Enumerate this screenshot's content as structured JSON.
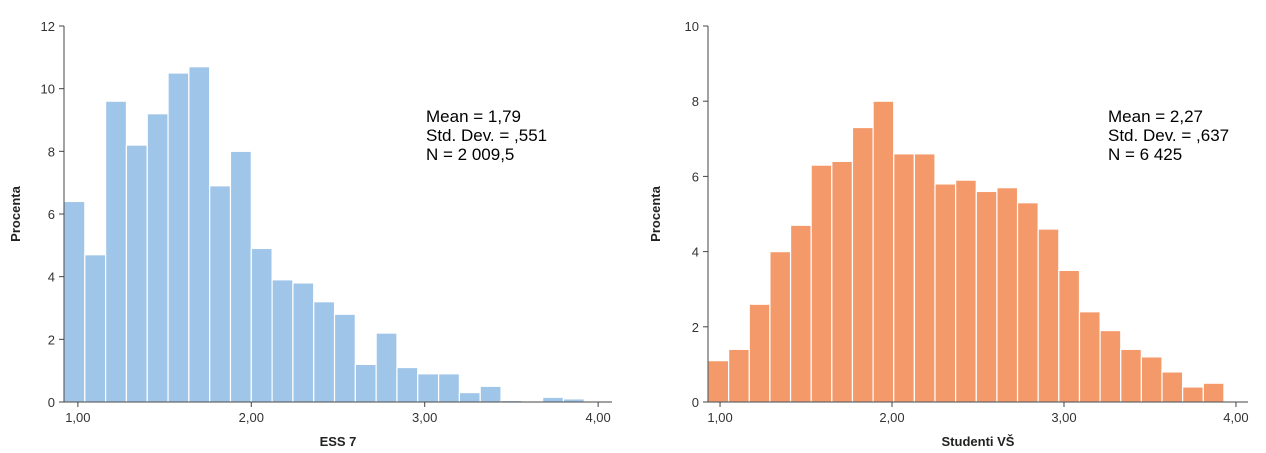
{
  "chart_data": [
    {
      "type": "bar",
      "subtype": "histogram",
      "xlabel": "ESS 7",
      "ylabel": "Procenta",
      "color": "#9FC5E8",
      "xlim": [
        0.92,
        4.08
      ],
      "ylim": [
        0,
        12
      ],
      "x_ticks": [
        1.0,
        2.0,
        3.0,
        4.0
      ],
      "x_tick_labels": [
        "1,00",
        "2,00",
        "3,00",
        "4,00"
      ],
      "y_ticks": [
        0,
        2,
        4,
        6,
        8,
        10,
        12
      ],
      "y_tick_labels": [
        "0",
        "2",
        "4",
        "6",
        "8",
        "10",
        "12"
      ],
      "bin_start": 0.92,
      "bin_width": 0.12,
      "values": [
        6.4,
        4.7,
        9.6,
        8.2,
        9.2,
        10.5,
        10.7,
        6.9,
        8.0,
        4.9,
        3.9,
        3.8,
        3.2,
        2.8,
        1.2,
        2.2,
        1.1,
        0.9,
        0.9,
        0.3,
        0.5,
        0.05,
        0,
        0.15,
        0.1
      ],
      "stats": [
        "Mean = 1,79",
        "Std. Dev. = ,551",
        "N = 2 009,5"
      ],
      "grid": false
    },
    {
      "type": "bar",
      "subtype": "histogram",
      "xlabel": "Studenti VŠ",
      "ylabel": "Procenta",
      "color": "#F4996A",
      "xlim": [
        0.93,
        4.07
      ],
      "ylim": [
        0,
        10
      ],
      "x_ticks": [
        1.0,
        2.0,
        3.0,
        4.0
      ],
      "x_tick_labels": [
        "1,00",
        "2,00",
        "3,00",
        "4,00"
      ],
      "y_ticks": [
        0,
        2,
        4,
        6,
        8,
        10
      ],
      "y_tick_labels": [
        "0",
        "2",
        "4",
        "6",
        "8",
        "10"
      ],
      "bin_start": 0.93,
      "bin_width": 0.12,
      "values": [
        1.1,
        1.4,
        2.6,
        4.0,
        4.7,
        6.3,
        6.4,
        7.3,
        8.0,
        6.6,
        6.6,
        5.8,
        5.9,
        5.6,
        5.7,
        5.3,
        4.6,
        3.5,
        2.4,
        1.9,
        1.4,
        1.2,
        0.8,
        0.4,
        0.5
      ],
      "stats": [
        "Mean = 2,27",
        "Std. Dev. = ,637",
        "N = 6 425"
      ],
      "grid": false
    }
  ]
}
